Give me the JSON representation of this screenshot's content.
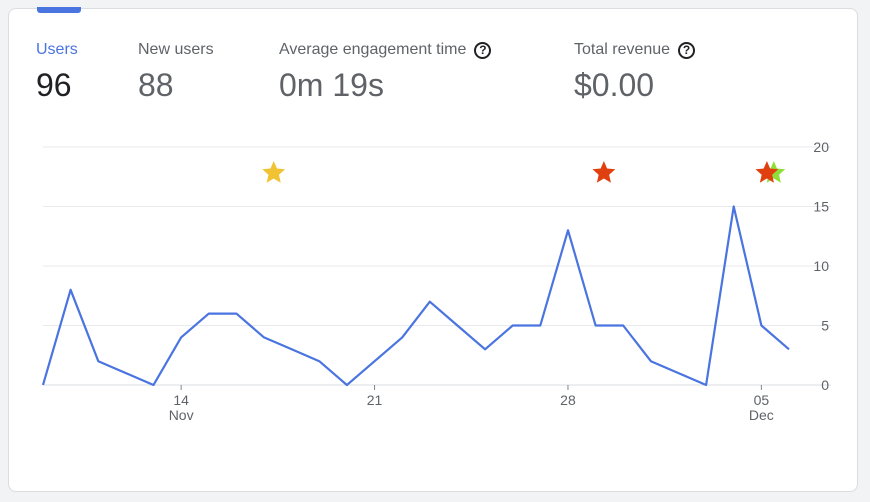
{
  "metrics": [
    {
      "label": "Users",
      "value": "96",
      "active": true,
      "help": false
    },
    {
      "label": "New users",
      "value": "88",
      "active": false,
      "help": false
    },
    {
      "label": "Average engagement time",
      "value": "0m 19s",
      "active": false,
      "help": true
    },
    {
      "label": "Total revenue",
      "value": "$0.00",
      "active": false,
      "help": true
    }
  ],
  "colors": {
    "accent": "#4a74e0",
    "line": "#4a74e0",
    "grid": "#e8eaed",
    "text": "#5f6368",
    "star_yellow": "#f1c232",
    "star_red": "#e0400f",
    "star_green": "#8fdf3a"
  },
  "chart_data": {
    "type": "line",
    "series": [
      {
        "values": [
          0,
          8,
          2,
          1,
          0,
          4,
          6,
          6,
          4,
          3,
          2,
          0,
          2,
          4,
          7,
          5,
          3,
          5,
          5,
          13,
          5,
          5,
          2,
          1,
          0,
          15,
          5,
          3
        ]
      }
    ],
    "x_tick_labels": [
      {
        "index": 5,
        "day": "14",
        "month": "Nov"
      },
      {
        "index": 12,
        "day": "21",
        "month": ""
      },
      {
        "index": 19,
        "day": "28",
        "month": ""
      },
      {
        "index": 26,
        "day": "05",
        "month": "Dec"
      }
    ],
    "y_ticks": [
      0,
      5,
      10,
      15,
      20
    ],
    "ylim": [
      0,
      20
    ],
    "annotations": [
      {
        "index": 8.35,
        "color": "yellow"
      },
      {
        "index": 20.3,
        "color": "red"
      },
      {
        "index": 26.45,
        "color": "green"
      },
      {
        "index": 26.2,
        "color": "red"
      }
    ],
    "grid": true
  }
}
